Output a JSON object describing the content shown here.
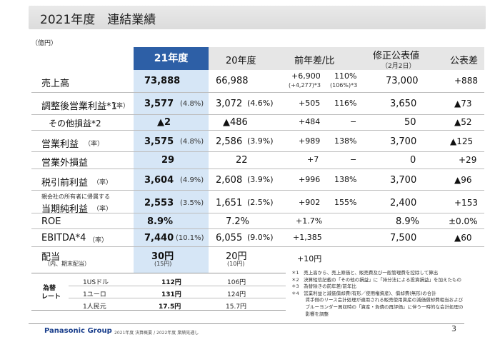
{
  "title": "2021年度　連結業績",
  "unit": "（億円）",
  "headers": {
    "fy21": "21年度",
    "fy20": "20年度",
    "yoy": "前年差/比",
    "revised": "修正公表値",
    "revised_date": "（2月2日）",
    "diff": "公表差"
  },
  "rows": [
    {
      "label": "売上高",
      "label_note": "",
      "label_sub": "",
      "v21": "73,888",
      "v21_pct": "",
      "v20": "66,988",
      "v20_pct": "",
      "yoy_diff": "+6,900",
      "yoy_diff_sub": "(+4,277)*3",
      "yoy_ratio": "110%",
      "yoy_ratio_sub": "(106%)*3",
      "revised": "73,000",
      "diff": "+888"
    },
    {
      "label": "調整後営業利益*1",
      "label_note": "（率）",
      "label_sub": "",
      "v21": "3,577",
      "v21_pct": "(4.8%)",
      "v20": "3,072",
      "v20_pct": "(4.6%)",
      "yoy_diff": "+505",
      "yoy_diff_sub": "",
      "yoy_ratio": "116%",
      "yoy_ratio_sub": "",
      "revised": "3,650",
      "diff": "▲73"
    },
    {
      "label": "その他損益*2",
      "label_note": "",
      "label_sub": "",
      "v21": "▲2",
      "v21_pct": "",
      "v20": "▲486",
      "v20_pct": "",
      "yoy_diff": "+484",
      "yoy_diff_sub": "",
      "yoy_ratio": "−",
      "yoy_ratio_sub": "",
      "revised": "50",
      "diff": "▲52"
    },
    {
      "label": "営業利益",
      "label_note": "（率）",
      "label_sub": "",
      "v21": "3,575",
      "v21_pct": "(4.8%)",
      "v20": "2,586",
      "v20_pct": "(3.9%)",
      "yoy_diff": "+989",
      "yoy_diff_sub": "",
      "yoy_ratio": "138%",
      "yoy_ratio_sub": "",
      "revised": "3,700",
      "diff": "▲125"
    },
    {
      "label": "営業外損益",
      "label_note": "",
      "label_sub": "",
      "v21": "29",
      "v21_pct": "",
      "v20": "22",
      "v20_pct": "",
      "yoy_diff": "+7",
      "yoy_diff_sub": "",
      "yoy_ratio": "−",
      "yoy_ratio_sub": "",
      "revised": "0",
      "diff": "+29"
    },
    {
      "label": "税引前利益",
      "label_note": "（率）",
      "label_sub": "",
      "v21": "3,604",
      "v21_pct": "(4.9%)",
      "v20": "2,608",
      "v20_pct": "(3.9%)",
      "yoy_diff": "+996",
      "yoy_diff_sub": "",
      "yoy_ratio": "138%",
      "yoy_ratio_sub": "",
      "revised": "3,700",
      "diff": "▲96"
    },
    {
      "label": "当期純利益",
      "label_note": "（率）",
      "label_sub": "親会社の所有者に帰属する",
      "v21": "2,553",
      "v21_pct": "(3.5%)",
      "v20": "1,651",
      "v20_pct": "(2.5%)",
      "yoy_diff": "+902",
      "yoy_diff_sub": "",
      "yoy_ratio": "155%",
      "yoy_ratio_sub": "",
      "revised": "2,400",
      "diff": "+153"
    },
    {
      "label": "ROE",
      "label_note": "",
      "label_sub": "",
      "v21": "8.9%",
      "v21_pct": "",
      "v20": "7.2%",
      "v20_pct": "",
      "yoy_diff": "+1.7%",
      "yoy_diff_sub": "",
      "yoy_ratio": "",
      "yoy_ratio_sub": "",
      "revised": "8.9%",
      "diff": "±0.0%"
    },
    {
      "label": "EBITDA*4",
      "label_note": "（率）",
      "label_sub": "",
      "v21": "7,440",
      "v21_pct": "(10.1%)",
      "v20": "6,055",
      "v20_pct": "(9.0%)",
      "yoy_diff": "+1,385",
      "yoy_diff_sub": "",
      "yoy_ratio": "",
      "yoy_ratio_sub": "",
      "revised": "7,500",
      "diff": "▲60"
    },
    {
      "label": "配当",
      "label_note": "",
      "label_sub": "（内、期末配当）",
      "v21": "30円",
      "v21_pct": "(15円)",
      "v20": "20円",
      "v20_pct": "(10円)",
      "yoy_diff": "+10円",
      "yoy_diff_sub": "",
      "yoy_ratio": "",
      "yoy_ratio_sub": "",
      "revised": "",
      "diff": ""
    }
  ],
  "fx": {
    "label_line1": "為替",
    "label_line2": "レート",
    "rows": [
      {
        "currency": "1USドル",
        "v21": "112円",
        "v20": "106円"
      },
      {
        "currency": "1ユーロ",
        "v21": "131円",
        "v20": "124円"
      },
      {
        "currency": "1人民元",
        "v21": "17.5円",
        "v20": "15.7円"
      }
    ]
  },
  "notes": [
    "＊1　売上高から、売上原価と、販売費及び一般管理費を控除して算出",
    "＊2　決算短信記載の「その他の損益」に「持分法による投資損益」を加えたもの",
    "＊3　為替除きの前年差/前年比",
    "＊4　営業利益と減価償却費(有形／使用権資産)、償却費(無形)の合計",
    "　　　賃手側のリース会計処理が適用される販売使用資産の減価償却費相当および",
    "　　　ブルーヨンダー買収時の「資産・負債の再評価」に伴う一時的な会計処理の",
    "　　　影響を調整"
  ],
  "footer": {
    "brand": "Panasonic Group",
    "source": "2021年度 決算概要 / 2022年度 業績見通し",
    "page": "3"
  }
}
